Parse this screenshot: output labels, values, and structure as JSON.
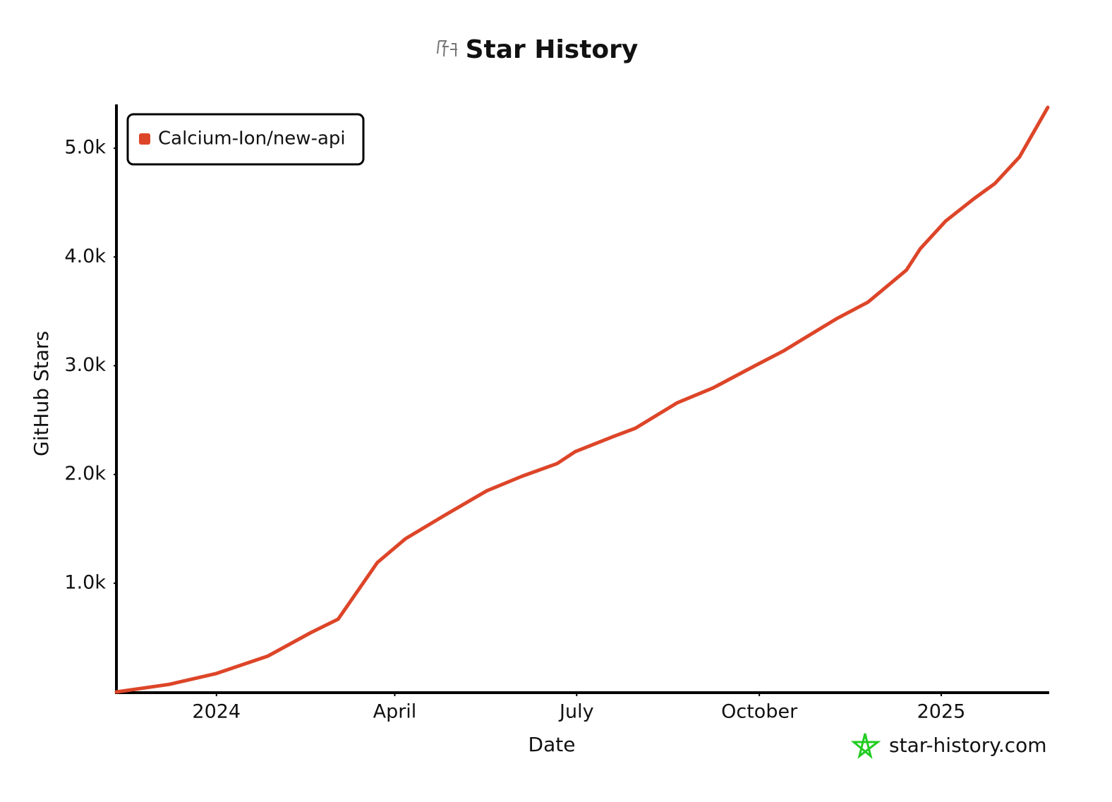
{
  "chart_data": {
    "type": "line",
    "title": "Star History",
    "x_label": "Date",
    "y_label": "GitHub Stars",
    "watermark": "star-history.com",
    "x": [
      2023.862,
      2023.935,
      2024.0,
      2024.071,
      2024.13,
      2024.168,
      2024.222,
      2024.261,
      2024.315,
      2024.373,
      2024.422,
      2024.47,
      2024.495,
      2024.548,
      2024.578,
      2024.636,
      2024.685,
      2024.743,
      2024.782,
      2024.855,
      2024.899,
      2024.952,
      2024.971,
      2025.006,
      2025.045,
      2025.074,
      2025.108,
      2025.147
    ],
    "series": [
      {
        "name": "Calcium-Ion/new-api",
        "color": "#dd4528",
        "values": [
          0,
          70,
          170,
          330,
          545,
          670,
          1190,
          1410,
          1625,
          1850,
          1985,
          2100,
          2210,
          2350,
          2425,
          2660,
          2795,
          3000,
          3135,
          3430,
          3585,
          3880,
          4075,
          4330,
          4535,
          4675,
          4920,
          5375
        ]
      }
    ],
    "xlim": [
      2023.862,
      2025.147
    ],
    "xticks": [
      {
        "value": 2024.0,
        "label": "2024"
      },
      {
        "value": 2024.246,
        "label": "April"
      },
      {
        "value": 2024.497,
        "label": "July"
      },
      {
        "value": 2024.749,
        "label": "October"
      },
      {
        "value": 2025.0,
        "label": "2025"
      }
    ],
    "ylim": [
      0,
      5390
    ],
    "yticks": [
      {
        "value": 1000,
        "label": "1.0k"
      },
      {
        "value": 2000,
        "label": "2.0k"
      },
      {
        "value": 3000,
        "label": "3.0k"
      },
      {
        "value": 4000,
        "label": "4.0k"
      },
      {
        "value": 5000,
        "label": "5.0k"
      }
    ],
    "legend": "top-left",
    "grid": false
  }
}
